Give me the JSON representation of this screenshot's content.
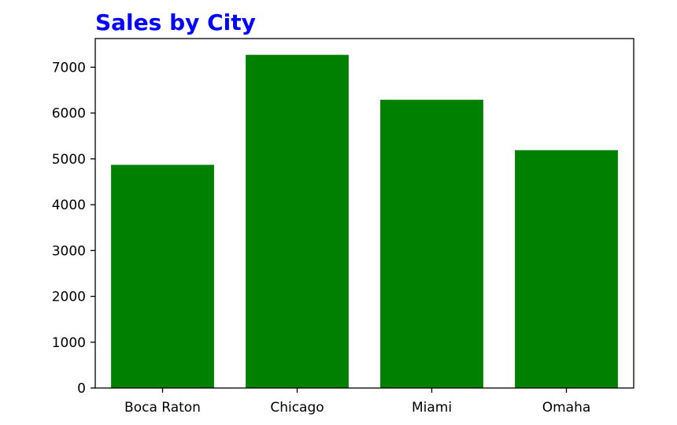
{
  "chart_data": {
    "type": "bar",
    "title": "Sales by City",
    "xlabel": "",
    "ylabel": "",
    "categories": [
      "Boca Raton",
      "Chicago",
      "Miami",
      "Omaha"
    ],
    "values": [
      4870,
      7270,
      6290,
      5190
    ],
    "ylim": [
      0,
      7625
    ],
    "yticks": [
      0,
      1000,
      2000,
      3000,
      4000,
      5000,
      6000,
      7000
    ],
    "grid": false,
    "legend": "none",
    "colors": {
      "bar": "#008000",
      "title": "#0000ff",
      "axis": "#000000"
    }
  }
}
